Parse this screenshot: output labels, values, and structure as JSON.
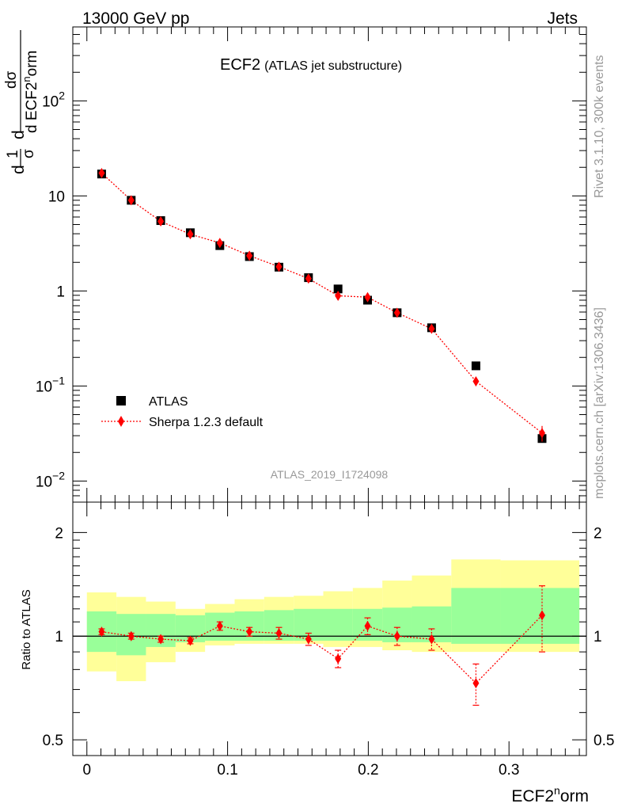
{
  "header": {
    "left": "13000 GeV pp",
    "right": "Jets"
  },
  "side_text": {
    "rivet": "Rivet 3.1.10,  300k events",
    "mcplots": "mcplots.cern.ch [arXiv:1306.3436]"
  },
  "chart_data": [
    {
      "type": "scatter",
      "title": "ECF2",
      "subtitle": "(ATLAS jet substructure)",
      "watermark": "ATLAS_2019_I1724098",
      "ylabel": {
        "num_prefix": "d",
        "num": "1",
        "den": "σ",
        "frac_num": "dσ",
        "frac_den_prefix": "d ECF2",
        "frac_den_sup": "n",
        "frac_den_suffix": "orm"
      },
      "yscale": "log",
      "ylim": [
        0.006,
        600
      ],
      "xlim": [
        -0.01,
        0.355
      ],
      "yticks": [
        {
          "value": 0.01,
          "base": "10",
          "exp": "−2"
        },
        {
          "value": 0.1,
          "base": "10",
          "exp": "−1"
        },
        {
          "value": 1,
          "base": "1",
          "exp": ""
        },
        {
          "value": 10,
          "base": "10",
          "exp": ""
        },
        {
          "value": 100,
          "base": "10",
          "exp": "2"
        }
      ],
      "legend": {
        "position": "bottom-left",
        "entries": [
          "ATLAS",
          "Sherpa 1.2.3 default"
        ]
      },
      "series": [
        {
          "name": "ATLAS",
          "marker": "square",
          "color": "#000000",
          "x": [
            0.0105,
            0.0315,
            0.0525,
            0.0735,
            0.0945,
            0.1155,
            0.1365,
            0.1575,
            0.1785,
            0.1995,
            0.2205,
            0.245,
            0.2765,
            0.3235
          ],
          "y": [
            17.0,
            9.0,
            5.5,
            4.1,
            3.0,
            2.3,
            1.78,
            1.38,
            1.05,
            0.8,
            0.59,
            0.41,
            0.163,
            0.028
          ]
        },
        {
          "name": "Sherpa 1.2.3 default",
          "marker": "diamond",
          "color": "#ff0000",
          "line": "dotted",
          "x": [
            0.0105,
            0.0315,
            0.0525,
            0.0735,
            0.0945,
            0.1155,
            0.1365,
            0.1575,
            0.1785,
            0.1995,
            0.2205,
            0.245,
            0.2765,
            0.3235
          ],
          "y": [
            17.4,
            9.0,
            5.4,
            3.95,
            3.2,
            2.35,
            1.8,
            1.35,
            0.89,
            0.86,
            0.59,
            0.4,
            0.112,
            0.032
          ],
          "yerr": [
            0.3,
            0.15,
            0.1,
            0.08,
            0.07,
            0.05,
            0.04,
            0.04,
            0.03,
            0.04,
            0.03,
            0.03,
            0.012,
            0.006
          ]
        }
      ]
    },
    {
      "type": "scatter",
      "ylabel": "Ratio to ATLAS",
      "xlabel": {
        "base": "ECF2",
        "sup": "n",
        "suffix": "orm"
      },
      "yscale": "log",
      "ylim": [
        0.45,
        2.45
      ],
      "xlim": [
        -0.01,
        0.355
      ],
      "yticks": [
        {
          "value": 0.5,
          "label": "0.5"
        },
        {
          "value": 1,
          "label": "1"
        },
        {
          "value": 2,
          "label": "2"
        }
      ],
      "xticks": [
        {
          "value": 0,
          "label": "0"
        },
        {
          "value": 0.1,
          "label": "0.1"
        },
        {
          "value": 0.2,
          "label": "0.2"
        },
        {
          "value": 0.3,
          "label": "0.3"
        }
      ],
      "bins": [
        0,
        0.021,
        0.042,
        0.063,
        0.084,
        0.105,
        0.126,
        0.147,
        0.168,
        0.189,
        0.21,
        0.231,
        0.259,
        0.294,
        0.35
      ],
      "bands": {
        "yellow": {
          "color": "#ffff99",
          "lo": [
            0.79,
            0.74,
            0.84,
            0.9,
            0.94,
            0.95,
            0.95,
            0.95,
            0.93,
            0.93,
            0.91,
            0.9,
            0.9,
            0.9
          ],
          "hi": [
            1.34,
            1.3,
            1.26,
            1.2,
            1.24,
            1.28,
            1.3,
            1.31,
            1.35,
            1.38,
            1.45,
            1.5,
            1.67,
            1.66
          ]
        },
        "green": {
          "color": "#99ff99",
          "lo": [
            0.9,
            0.88,
            0.93,
            0.96,
            0.97,
            0.97,
            0.97,
            0.97,
            0.97,
            0.97,
            0.96,
            0.96,
            0.95,
            0.95
          ],
          "hi": [
            1.18,
            1.16,
            1.16,
            1.15,
            1.17,
            1.18,
            1.19,
            1.2,
            1.2,
            1.2,
            1.21,
            1.22,
            1.38,
            1.38
          ]
        }
      },
      "reference_line": 1,
      "series": [
        {
          "name": "Sherpa 1.2.3 default",
          "marker": "diamond",
          "color": "#ff0000",
          "line": "dotted",
          "x": [
            0.0105,
            0.0315,
            0.0525,
            0.0735,
            0.0945,
            0.1155,
            0.1365,
            0.1575,
            0.1785,
            0.1995,
            0.2205,
            0.245,
            0.2765,
            0.3235
          ],
          "y": [
            1.03,
            1.0,
            0.98,
            0.97,
            1.07,
            1.03,
            1.02,
            0.98,
            0.86,
            1.07,
            1.0,
            0.98,
            0.73,
            1.15
          ],
          "yerr": [
            0.02,
            0.02,
            0.02,
            0.02,
            0.03,
            0.03,
            0.04,
            0.04,
            0.05,
            0.06,
            0.06,
            0.07,
            0.1,
            0.25
          ]
        }
      ]
    }
  ]
}
